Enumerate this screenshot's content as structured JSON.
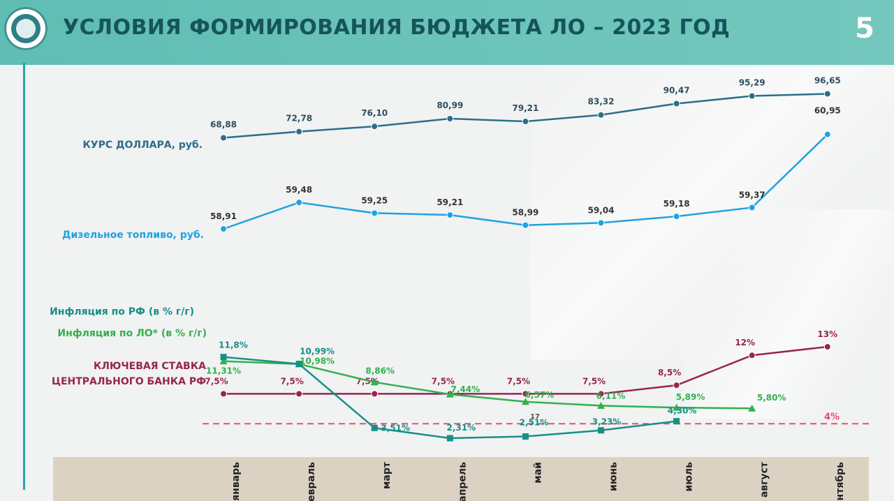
{
  "header": {
    "title": "УСЛОВИЯ ФОРМИРОВАНИЯ БЮДЖЕТА  ЛО  – 2023 ГОД",
    "page_number": "5"
  },
  "colors": {
    "header_bg": "#6dc4ba",
    "usd": "#2c6e8a",
    "diesel": "#1fa2e0",
    "inflation_rf": "#178f86",
    "inflation_lo": "#33b04f",
    "key_rate": "#97264f",
    "target": "#e0526c",
    "axis_band": "#dcd2c4"
  },
  "chart_data": {
    "type": "line",
    "categories": [
      "январь",
      "февраль",
      "март",
      "апрель",
      "май",
      "июнь",
      "июль",
      "август",
      "сентябрь"
    ],
    "series": [
      {
        "name": "КУРС ДОЛЛАРА, руб.",
        "values": [
          68.88,
          72.78,
          76.1,
          80.99,
          79.21,
          83.32,
          90.47,
          95.29,
          96.65
        ],
        "labels": [
          "68,88",
          "72,78",
          "76,10",
          "80,99",
          "79,21",
          "83,32",
          "90,47",
          "95,29",
          "96,65"
        ]
      },
      {
        "name": "Дизельное топливо, руб.",
        "values": [
          58.91,
          59.48,
          59.25,
          59.21,
          58.99,
          59.04,
          59.18,
          59.37,
          60.95
        ],
        "labels": [
          "58,91",
          "59,48",
          "59,25",
          "59,21",
          "58,99",
          "59,04",
          "59,18",
          "59,37",
          "60,95"
        ]
      },
      {
        "name": "Инфляция по РФ (в % г/г)",
        "values": [
          11.8,
          10.99,
          3.51,
          2.31,
          2.51,
          3.23,
          4.3,
          null,
          null
        ],
        "labels": [
          "11,8%",
          "10,99%",
          "3,51%",
          "2,31%",
          "2,51%",
          "3,23%",
          "4,30%",
          "",
          ""
        ]
      },
      {
        "name": "Инфляция по ЛО* (в % г/г)",
        "values": [
          11.31,
          10.98,
          8.86,
          7.44,
          6.57,
          6.11,
          5.89,
          5.8,
          null
        ],
        "labels": [
          "11,31%",
          "10,98%",
          "8,86%",
          "7,44%",
          "6,57%",
          "6,11%",
          "5,89%",
          "5,80%",
          ""
        ]
      },
      {
        "name": "КЛЮЧЕВАЯ СТАВКА ЦЕНТРАЛЬНОГО БАНКА РФ",
        "values": [
          7.5,
          7.5,
          7.5,
          7.5,
          7.5,
          7.5,
          8.5,
          12,
          13
        ],
        "labels": [
          "7,5%",
          "7,5%",
          "7,5%",
          "7,5%",
          "7,5%",
          "7,5%",
          "8,5%",
          "12%",
          "13%"
        ]
      }
    ],
    "target_line": {
      "value": 4,
      "label": "4%"
    },
    "legend": {
      "usd": "КУРС ДОЛЛАРА, руб.",
      "diesel": "Дизельное топливо, руб.",
      "inflation_rf": "Инфляция по РФ (в % г/г)",
      "inflation_lo": "Инфляция по ЛО* (в % г/г)",
      "key_rate_line1": "КЛЮЧЕВАЯ СТАВКА",
      "key_rate_line2": "ЦЕНТРАЛЬНОГО БАНКА РФ"
    },
    "annotation_small": "17"
  }
}
